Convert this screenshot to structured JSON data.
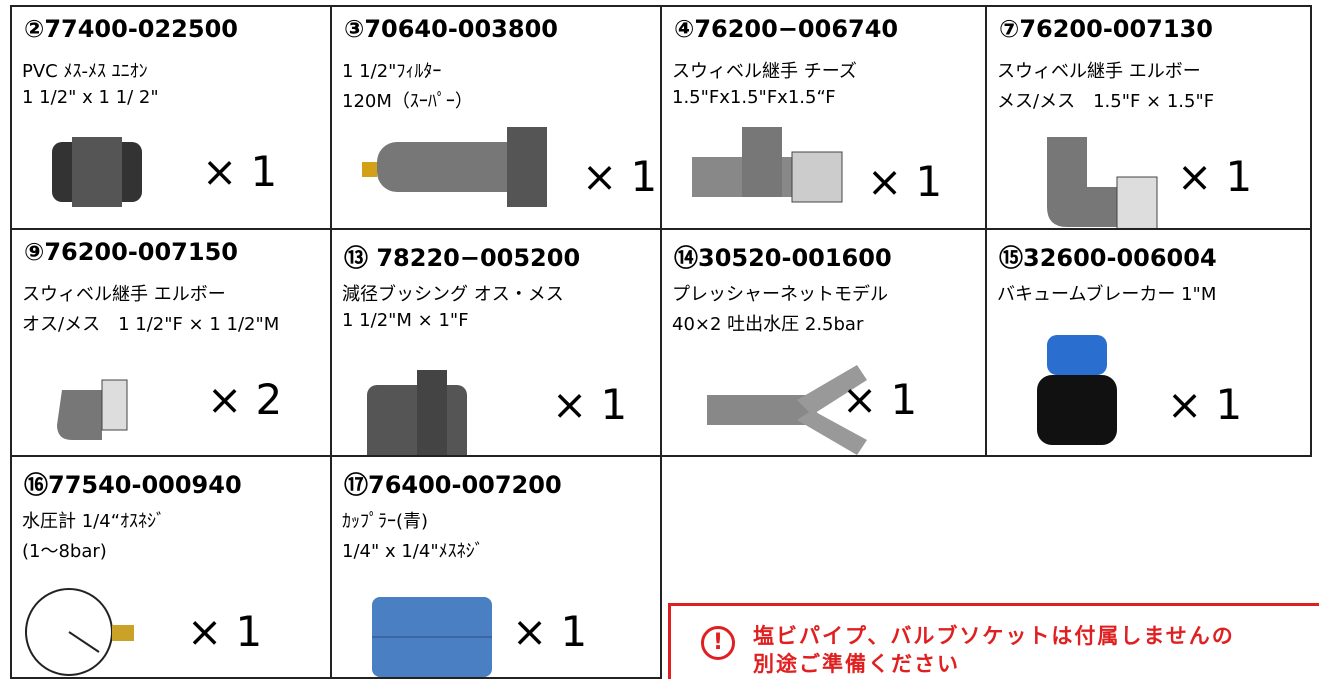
{
  "items": [
    {
      "code": "②77400-022500",
      "lines": [
        "PVC ﾒｽ-ﾒｽ ﾕﾆｵﾝ",
        "1 1/2\" x 1 1/ 2\""
      ],
      "quantity": "× 1"
    },
    {
      "code": "③70640-003800",
      "lines": [
        "1 1/2\"ﾌｨﾙﾀｰ",
        "120M（ｽｰﾊﾟｰ）"
      ],
      "quantity": "× 1"
    },
    {
      "code": "④76200−006740",
      "lines": [
        "スウィベル継手 チーズ",
        "1.5\"Fx1.5\"Fx1.5“F"
      ],
      "quantity": "× 1"
    },
    {
      "code": "⑦76200-007130",
      "lines": [
        "スウィベル継手 エルボー",
        "メス/メス　1.5\"F × 1.5\"F"
      ],
      "quantity": "× 1"
    },
    {
      "code": "⑨76200-007150",
      "lines": [
        "スウィベル継手 エルボー",
        "オス/メス　1 1/2\"F × 1 1/2\"M"
      ],
      "quantity": "× 2"
    },
    {
      "code": "⑬ 78220−005200",
      "lines": [
        "減径ブッシング オス・メス",
        "1 1/2\"M × 1\"F"
      ],
      "quantity": "× 1"
    },
    {
      "code": "⑭30520-001600",
      "lines": [
        "プレッシャーネットモデル",
        "40×2 吐出水圧 2.5bar"
      ],
      "quantity": "× 1"
    },
    {
      "code": "⑮32600-006004",
      "lines": [
        "バキュームブレーカー 1\"M"
      ],
      "quantity": "× 1"
    },
    {
      "code": "⑯77540-000940",
      "lines": [
        "水圧計 1/4“ｵｽﾈｼﾞ",
        "(1～8bar)"
      ],
      "quantity": "× 1"
    },
    {
      "code": "⑰76400-007200",
      "lines": [
        "ｶｯﾌﾟﾗｰ(青)",
        "1/4\" x 1/4\"ﾒｽﾈｼﾞ"
      ],
      "quantity": "× 1"
    }
  ],
  "notice": {
    "icon": "!",
    "lines": [
      "塩ビパイプ、バルブソケットは付属しませんの",
      "別途ご準備ください"
    ]
  }
}
